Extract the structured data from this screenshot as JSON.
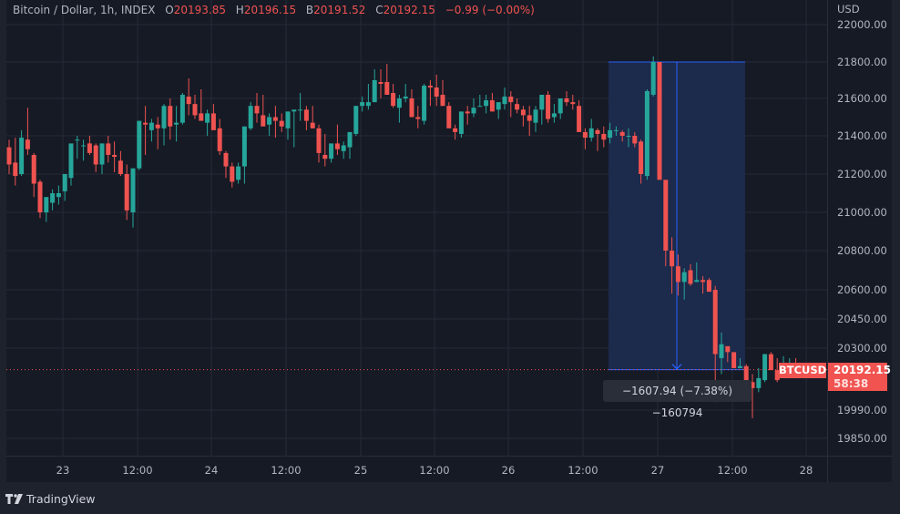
{
  "legend": {
    "symbol": "Bitcoin / Dollar, 1h, INDEX",
    "open_label": "O",
    "open": "20193.85",
    "high_label": "H",
    "high": "20196.15",
    "low_label": "B",
    "low": "20191.52",
    "close_label": "C",
    "close": "20192.15",
    "change": "−0.99 (−0.00%)"
  },
  "price_axis": {
    "currency": "USD",
    "ticks": [
      {
        "label": "22000.00",
        "price": 22000,
        "y": 27
      },
      {
        "label": "21800.00",
        "price": 21800,
        "y": 68
      },
      {
        "label": "21600.00",
        "price": 21600,
        "y": 108
      },
      {
        "label": "21400.00",
        "price": 21400,
        "y": 149
      },
      {
        "label": "21200.00",
        "price": 21200,
        "y": 191
      },
      {
        "label": "21000.00",
        "price": 21000,
        "y": 233
      },
      {
        "label": "20800.00",
        "price": 20800,
        "y": 275
      },
      {
        "label": "20600.00",
        "price": 20600,
        "y": 318
      },
      {
        "label": "20450.00",
        "price": 20450,
        "y": 350
      },
      {
        "label": "20300.00",
        "price": 20300,
        "y": 382
      },
      {
        "label": "19990.00",
        "price": 19990,
        "y": 450
      },
      {
        "label": "19850.00",
        "price": 19850,
        "y": 481
      }
    ]
  },
  "time_axis": {
    "ticks": [
      {
        "label": "23",
        "x": 69
      },
      {
        "label": "12:00",
        "x": 151
      },
      {
        "label": "24",
        "x": 232
      },
      {
        "label": "12:00",
        "x": 314
      },
      {
        "label": "25",
        "x": 396
      },
      {
        "label": "12:00",
        "x": 477
      },
      {
        "label": "26",
        "x": 558
      },
      {
        "label": "12:00",
        "x": 640
      },
      {
        "label": "27",
        "x": 722
      },
      {
        "label": "12:00",
        "x": 804
      },
      {
        "label": "28",
        "x": 885
      }
    ]
  },
  "last_price": {
    "symbol": "BTCUSD",
    "price": "20192.15",
    "countdown": "58:38",
    "value": 20192.15
  },
  "measure": {
    "text": "−1607.94 (−7.38%) −160794",
    "from_price": 21800.09,
    "to_price": 20192.15,
    "x_start": 668,
    "x_end": 818
  },
  "colors": {
    "background": "#161a25",
    "grid": "#252a36",
    "up": "#26a69a",
    "down": "#ef5350",
    "measure_fill": "#1c2b4d",
    "measure_line": "#2962ff",
    "text": "#b2b5be"
  },
  "footer": {
    "brand": "TradingView"
  },
  "chart_data": {
    "type": "candlestick",
    "title": "Bitcoin / Dollar, 1h, INDEX",
    "ylabel": "USD",
    "ylim": [
      19800,
      22050
    ],
    "x_tick_labels": [
      "23",
      "12:00",
      "24",
      "12:00",
      "25",
      "12:00",
      "26",
      "12:00",
      "27",
      "12:00",
      "28"
    ],
    "y_tick_labels": [
      "22000.00",
      "21800.00",
      "21600.00",
      "21400.00",
      "21200.00",
      "21000.00",
      "20800.00",
      "20600.00",
      "20450.00",
      "20300.00",
      "19990.00",
      "19850.00"
    ],
    "grid": true,
    "candle_spacing_px": 6.8,
    "first_candle_x": 10,
    "candles": [
      [
        21340,
        21380,
        21200,
        21250
      ],
      [
        21260,
        21390,
        21140,
        21190
      ],
      [
        21200,
        21430,
        21190,
        21390
      ],
      [
        21380,
        21550,
        21300,
        21330
      ],
      [
        21300,
        21310,
        21080,
        21150
      ],
      [
        21160,
        21170,
        20970,
        21000
      ],
      [
        21000,
        21030,
        20950,
        21080
      ],
      [
        21050,
        21120,
        21010,
        21100
      ],
      [
        21080,
        21140,
        21040,
        21100
      ],
      [
        21110,
        21180,
        21060,
        21200
      ],
      [
        21180,
        21260,
        21140,
        21360
      ],
      [
        21380,
        21400,
        21280,
        21380
      ],
      [
        21350,
        21380,
        21270,
        21350
      ],
      [
        21360,
        21400,
        21300,
        21310
      ],
      [
        21350,
        21360,
        21210,
        21250
      ],
      [
        21250,
        21360,
        21200,
        21360
      ],
      [
        21360,
        21400,
        21260,
        21300
      ],
      [
        21300,
        21370,
        21210,
        21290
      ],
      [
        21270,
        21320,
        21190,
        21200
      ],
      [
        21200,
        21250,
        20960,
        21010
      ],
      [
        21000,
        21140,
        20920,
        21230
      ],
      [
        21230,
        21480,
        21220,
        21480
      ],
      [
        21470,
        21560,
        21300,
        21460
      ],
      [
        21430,
        21490,
        21370,
        21470
      ],
      [
        21460,
        21500,
        21330,
        21440
      ],
      [
        21440,
        21570,
        21350,
        21560
      ],
      [
        21560,
        21600,
        21380,
        21450
      ],
      [
        21460,
        21560,
        21370,
        21470
      ],
      [
        21470,
        21630,
        21460,
        21620
      ],
      [
        21610,
        21710,
        21510,
        21570
      ],
      [
        21570,
        21620,
        21490,
        21510
      ],
      [
        21520,
        21650,
        21490,
        21480
      ],
      [
        21470,
        21540,
        21400,
        21520
      ],
      [
        21520,
        21570,
        21440,
        21430
      ],
      [
        21440,
        21490,
        21300,
        21320
      ],
      [
        21310,
        21320,
        21180,
        21240
      ],
      [
        21240,
        21260,
        21130,
        21160
      ],
      [
        21170,
        21260,
        21150,
        21240
      ],
      [
        21240,
        21430,
        21150,
        21450
      ],
      [
        21440,
        21580,
        21430,
        21560
      ],
      [
        21560,
        21630,
        21470,
        21520
      ],
      [
        21510,
        21620,
        21490,
        21450
      ],
      [
        21460,
        21520,
        21400,
        21500
      ],
      [
        21500,
        21560,
        21390,
        21480
      ],
      [
        21480,
        21520,
        21420,
        21450
      ],
      [
        21440,
        21520,
        21380,
        21530
      ],
      [
        21530,
        21540,
        21340,
        21540
      ],
      [
        21540,
        21630,
        21480,
        21540
      ],
      [
        21540,
        21560,
        21430,
        21480
      ],
      [
        21470,
        21560,
        21440,
        21440
      ],
      [
        21440,
        21460,
        21260,
        21310
      ],
      [
        21300,
        21410,
        21240,
        21280
      ],
      [
        21280,
        21320,
        21260,
        21360
      ],
      [
        21360,
        21460,
        21300,
        21330
      ],
      [
        21320,
        21370,
        21280,
        21350
      ],
      [
        21340,
        21370,
        21280,
        21420
      ],
      [
        21410,
        21540,
        21400,
        21560
      ],
      [
        21560,
        21610,
        21530,
        21580
      ],
      [
        21560,
        21680,
        21540,
        21580
      ],
      [
        21580,
        21760,
        21580,
        21700
      ],
      [
        21690,
        21760,
        21600,
        21680
      ],
      [
        21690,
        21790,
        21640,
        21620
      ],
      [
        21630,
        21680,
        21550,
        21560
      ],
      [
        21550,
        21620,
        21470,
        21600
      ],
      [
        21600,
        21680,
        21580,
        21610
      ],
      [
        21600,
        21650,
        21530,
        21500
      ],
      [
        21500,
        21560,
        21440,
        21490
      ],
      [
        21480,
        21680,
        21460,
        21670
      ],
      [
        21670,
        21700,
        21560,
        21660
      ],
      [
        21660,
        21730,
        21560,
        21610
      ],
      [
        21620,
        21700,
        21560,
        21560
      ],
      [
        21560,
        21580,
        21450,
        21440
      ],
      [
        21440,
        21460,
        21380,
        21420
      ],
      [
        21410,
        21520,
        21390,
        21530
      ],
      [
        21530,
        21560,
        21460,
        21520
      ],
      [
        21520,
        21600,
        21500,
        21550
      ],
      [
        21560,
        21620,
        21560,
        21560
      ],
      [
        21560,
        21620,
        21520,
        21590
      ],
      [
        21590,
        21630,
        21530,
        21530
      ],
      [
        21540,
        21560,
        21490,
        21580
      ],
      [
        21570,
        21660,
        21540,
        21610
      ],
      [
        21610,
        21640,
        21500,
        21580
      ],
      [
        21570,
        21600,
        21520,
        21540
      ],
      [
        21540,
        21560,
        21450,
        21510
      ],
      [
        21510,
        21560,
        21400,
        21480
      ],
      [
        21470,
        21560,
        21420,
        21540
      ],
      [
        21540,
        21620,
        21460,
        21620
      ],
      [
        21620,
        21640,
        21470,
        21490
      ],
      [
        21500,
        21570,
        21470,
        21520
      ],
      [
        21520,
        21600,
        21490,
        21600
      ],
      [
        21600,
        21640,
        21560,
        21580
      ],
      [
        21580,
        21620,
        21540,
        21570
      ],
      [
        21560,
        21590,
        21420,
        21420
      ],
      [
        21420,
        21440,
        21330,
        21390
      ],
      [
        21390,
        21490,
        21370,
        21440
      ],
      [
        21430,
        21440,
        21320,
        21410
      ],
      [
        21410,
        21450,
        21340,
        21380
      ],
      [
        21390,
        21470,
        21360,
        21430
      ],
      [
        21430,
        21450,
        21400,
        21430
      ],
      [
        21420,
        21430,
        21370,
        21400
      ],
      [
        21400,
        21440,
        21340,
        21400
      ],
      [
        21400,
        21420,
        21340,
        21360
      ],
      [
        21370,
        21380,
        21150,
        21200
      ],
      [
        21190,
        21650,
        21170,
        21640
      ],
      [
        21620,
        21830,
        21610,
        21800
      ],
      [
        21800,
        21800,
        21170,
        21170
      ],
      [
        21170,
        21170,
        20720,
        20800
      ],
      [
        20800,
        20870,
        20580,
        20720
      ],
      [
        20720,
        20780,
        20570,
        20640
      ],
      [
        20640,
        20710,
        20550,
        20690
      ],
      [
        20700,
        20730,
        20620,
        20630
      ],
      [
        20640,
        20740,
        20640,
        20650
      ],
      [
        20650,
        20670,
        20580,
        20640
      ],
      [
        20650,
        20660,
        20610,
        20590
      ],
      [
        20600,
        20620,
        20030,
        20270
      ],
      [
        20250,
        20380,
        20170,
        20320
      ],
      [
        20310,
        20280,
        20230,
        20280
      ],
      [
        20280,
        20250,
        20200,
        20200
      ],
      [
        20200,
        20250,
        20200,
        20210
      ],
      [
        20210,
        20220,
        20080,
        20140
      ],
      [
        20130,
        20170,
        19950,
        20100
      ],
      [
        20100,
        20200,
        20080,
        20150
      ],
      [
        20140,
        20270,
        20130,
        20270
      ],
      [
        20270,
        20280,
        20210,
        20190
      ],
      [
        20190,
        20250,
        20130,
        20140
      ],
      [
        20150,
        20260,
        20150,
        20190
      ],
      [
        20200,
        20250,
        20180,
        20220
      ],
      [
        20220,
        20250,
        20180,
        20190
      ],
      [
        20193.85,
        20196.15,
        20191.52,
        20192.15
      ]
    ]
  }
}
